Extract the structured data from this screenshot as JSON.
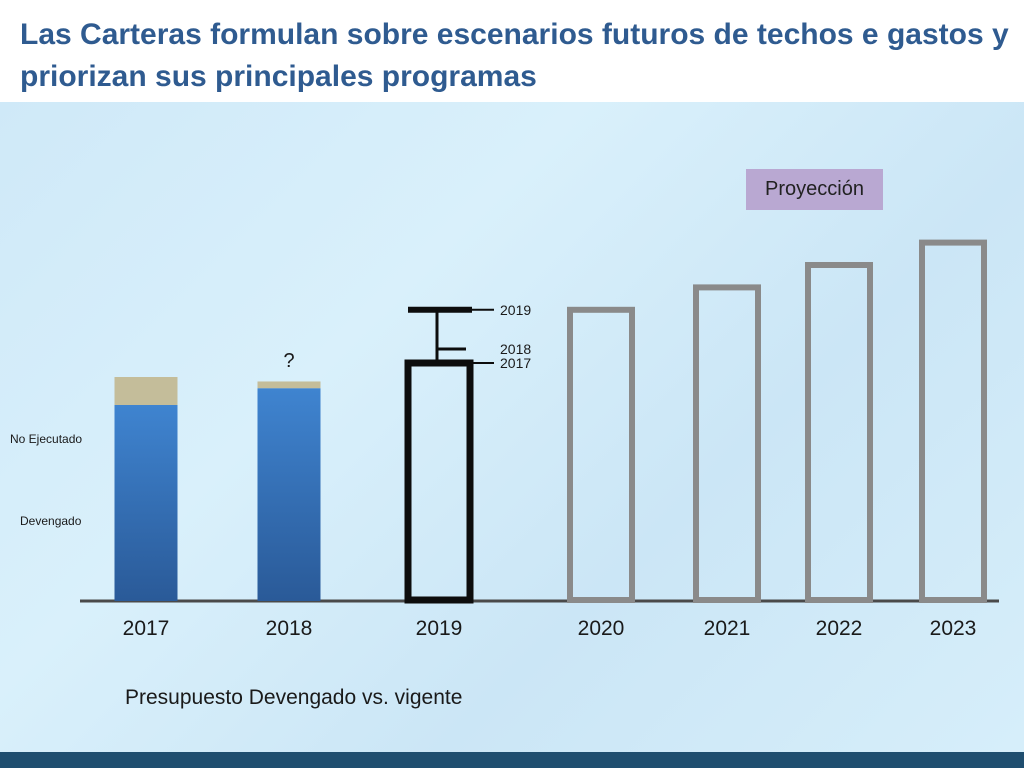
{
  "slide": {
    "title": "Las Carteras formulan sobre escenarios futuros de techos e gastos y priorizan sus principales programas",
    "caption": "Presupuesto Devengado vs. vigente",
    "projection_label": "Proyección"
  },
  "chart_data": {
    "type": "bar",
    "title": "",
    "xlabel": "",
    "ylabel": "",
    "categories": [
      "2017",
      "2018",
      "2019",
      "2020",
      "2021",
      "2022",
      "2023"
    ],
    "series": [
      {
        "name": "Devengado",
        "values": [
          35,
          38,
          null,
          null,
          null,
          null,
          null
        ]
      },
      {
        "name": "No Ejecutado",
        "values": [
          5,
          1.2,
          null,
          null,
          null,
          null,
          null
        ]
      }
    ],
    "outline_bars": [
      {
        "category": "2019",
        "value": 42.5,
        "style": "black"
      },
      {
        "category": "2020",
        "value": 52,
        "style": "gray"
      },
      {
        "category": "2021",
        "value": 56,
        "style": "gray"
      },
      {
        "category": "2022",
        "value": 60,
        "style": "gray"
      },
      {
        "category": "2023",
        "value": 64,
        "style": "gray"
      }
    ],
    "year_markers": [
      {
        "label": "2019",
        "value": 52
      },
      {
        "label": "2018",
        "value": 45
      },
      {
        "label": "2017",
        "value": 42.5
      }
    ],
    "question_mark": {
      "category": "2018",
      "text": "?"
    },
    "series_labels": [
      {
        "text": "No Ejecutado"
      },
      {
        "text": "Devengado"
      }
    ],
    "ylim": [
      0,
      70
    ],
    "grid": false,
    "legend": "left",
    "colors": {
      "devengado": "#3a78c0",
      "no_ejecutado": "#c4bd9a",
      "outline_black": "#0d0d0d",
      "outline_gray": "#8a8a8a",
      "axis": "#4a4a4a"
    }
  }
}
